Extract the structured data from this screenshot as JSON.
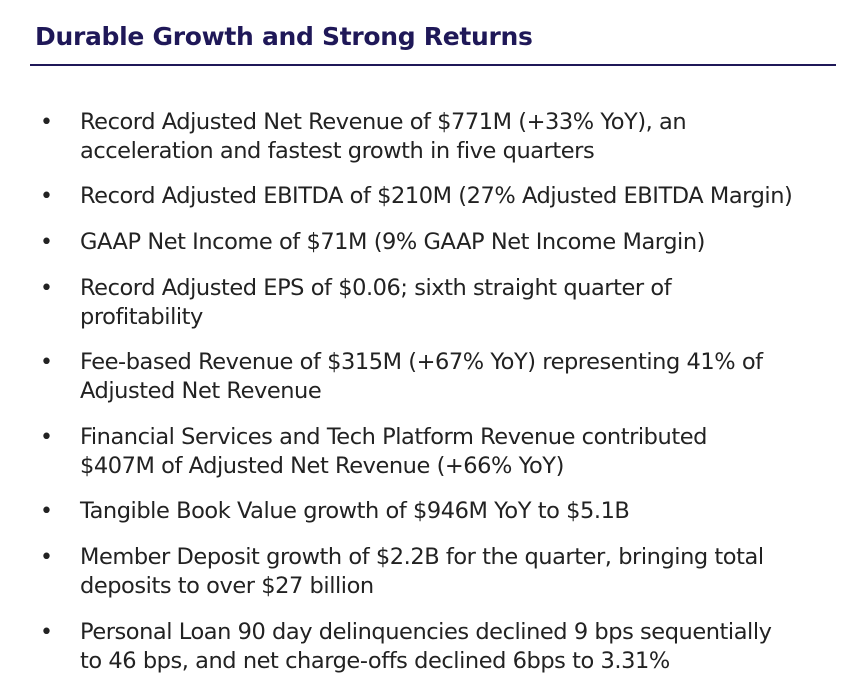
{
  "slide": {
    "title": "Durable Growth and Strong Returns",
    "colors": {
      "title": "#1f1858",
      "rule": "#1f1858",
      "body_text": "#222222",
      "background": "#ffffff"
    },
    "bullet_glyph": "•",
    "bullets": [
      {
        "line1": "Record Adjusted Net Revenue of $771M (+33% YoY), an",
        "line2": "acceleration and fastest growth in five quarters"
      },
      {
        "line1": "Record Adjusted EBITDA of $210M (27% Adjusted EBITDA Margin)",
        "line2": ""
      },
      {
        "line1": "GAAP Net Income of $71M (9% GAAP Net Income Margin)",
        "line2": ""
      },
      {
        "line1": "Record Adjusted EPS of $0.06; sixth straight quarter of",
        "line2": "profitability"
      },
      {
        "line1": "Fee-based Revenue of $315M (+67% YoY) representing 41% of",
        "line2": "Adjusted Net Revenue"
      },
      {
        "line1": "Financial Services and Tech Platform Revenue contributed",
        "line2": "$407M of Adjusted Net Revenue (+66% YoY)"
      },
      {
        "line1": "Tangible Book Value growth of $946M YoY to $5.1B",
        "line2": ""
      },
      {
        "line1": "Member Deposit growth of $2.2B for the quarter, bringing total",
        "line2": "deposits to over $27 billion"
      },
      {
        "line1": "Personal Loan 90 day delinquencies declined 9 bps sequentially",
        "line2": "to 46 bps, and net charge-offs declined 6bps to 3.31%"
      }
    ]
  }
}
